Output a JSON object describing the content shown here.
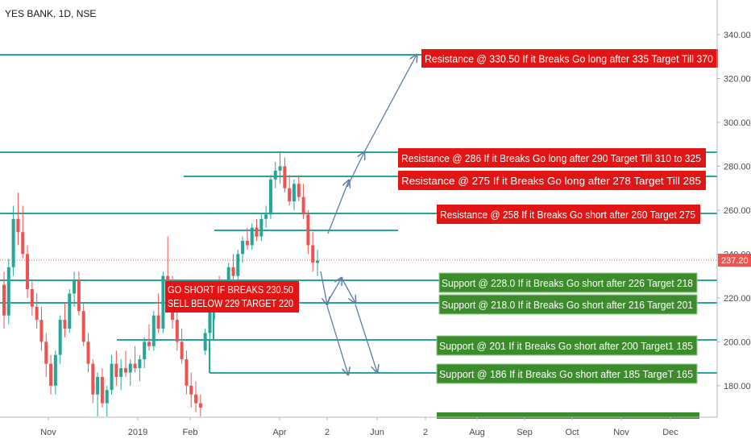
{
  "symbol_title": "YES BANK, 1D, NSE",
  "colors": {
    "up_candle": "#26a69a",
    "down_candle": "#ef5350",
    "level_line": "#26a69a",
    "arrow": "#5b7fa6",
    "resistance_box": "#e31414",
    "support_box": "#3c8c2c",
    "price_tag": "#ef5350",
    "price_line": "#ef5350"
  },
  "chart_data": {
    "type": "candlestick",
    "y_axis": {
      "min": 160,
      "max": 350,
      "ticks": [
        "340.00",
        "320.00",
        "300.00",
        "280.00",
        "260.00",
        "240.00",
        "220.00",
        "200.00",
        "180.00"
      ],
      "tick_values": [
        340,
        320,
        300,
        280,
        260,
        240,
        220,
        200,
        180
      ],
      "position": "right"
    },
    "x_axis": {
      "ticks": [
        "Nov",
        "2019",
        "Feb",
        "Apr",
        "2",
        "Jun",
        "2",
        "Aug",
        "Sep",
        "Oct",
        "Nov",
        "Dec"
      ]
    },
    "last_price": {
      "label": "237.20",
      "value": 237.2
    },
    "candles": [
      {
        "o": 226,
        "h": 232,
        "l": 206,
        "c": 212
      },
      {
        "o": 212,
        "h": 238,
        "l": 208,
        "c": 234
      },
      {
        "o": 234,
        "h": 262,
        "l": 230,
        "c": 256
      },
      {
        "o": 256,
        "h": 268,
        "l": 244,
        "c": 250
      },
      {
        "o": 250,
        "h": 262,
        "l": 238,
        "c": 240
      },
      {
        "o": 240,
        "h": 244,
        "l": 220,
        "c": 224
      },
      {
        "o": 224,
        "h": 228,
        "l": 212,
        "c": 216
      },
      {
        "o": 216,
        "h": 222,
        "l": 206,
        "c": 210
      },
      {
        "o": 210,
        "h": 216,
        "l": 196,
        "c": 200
      },
      {
        "o": 200,
        "h": 204,
        "l": 184,
        "c": 190
      },
      {
        "o": 190,
        "h": 194,
        "l": 176,
        "c": 180
      },
      {
        "o": 180,
        "h": 196,
        "l": 176,
        "c": 194
      },
      {
        "o": 194,
        "h": 212,
        "l": 190,
        "c": 210
      },
      {
        "o": 210,
        "h": 218,
        "l": 202,
        "c": 206
      },
      {
        "o": 206,
        "h": 224,
        "l": 204,
        "c": 222
      },
      {
        "o": 222,
        "h": 232,
        "l": 216,
        "c": 228
      },
      {
        "o": 228,
        "h": 232,
        "l": 212,
        "c": 214
      },
      {
        "o": 214,
        "h": 218,
        "l": 198,
        "c": 200
      },
      {
        "o": 200,
        "h": 204,
        "l": 186,
        "c": 190
      },
      {
        "o": 190,
        "h": 192,
        "l": 172,
        "c": 176
      },
      {
        "o": 176,
        "h": 186,
        "l": 166,
        "c": 184
      },
      {
        "o": 184,
        "h": 188,
        "l": 170,
        "c": 172
      },
      {
        "o": 172,
        "h": 180,
        "l": 166,
        "c": 178
      },
      {
        "o": 178,
        "h": 194,
        "l": 176,
        "c": 190
      },
      {
        "o": 190,
        "h": 196,
        "l": 180,
        "c": 184
      },
      {
        "o": 184,
        "h": 192,
        "l": 178,
        "c": 188
      },
      {
        "o": 188,
        "h": 196,
        "l": 184,
        "c": 186
      },
      {
        "o": 186,
        "h": 192,
        "l": 180,
        "c": 190
      },
      {
        "o": 190,
        "h": 198,
        "l": 186,
        "c": 188
      },
      {
        "o": 188,
        "h": 194,
        "l": 182,
        "c": 192
      },
      {
        "o": 192,
        "h": 202,
        "l": 188,
        "c": 200
      },
      {
        "o": 200,
        "h": 208,
        "l": 196,
        "c": 198
      },
      {
        "o": 198,
        "h": 214,
        "l": 196,
        "c": 212
      },
      {
        "o": 212,
        "h": 222,
        "l": 204,
        "c": 206
      },
      {
        "o": 206,
        "h": 232,
        "l": 204,
        "c": 230
      },
      {
        "o": 230,
        "h": 248,
        "l": 222,
        "c": 226
      },
      {
        "o": 226,
        "h": 230,
        "l": 206,
        "c": 210
      },
      {
        "o": 210,
        "h": 214,
        "l": 196,
        "c": 200
      },
      {
        "o": 200,
        "h": 206,
        "l": 190,
        "c": 192
      },
      {
        "o": 192,
        "h": 196,
        "l": 176,
        "c": 180
      },
      {
        "o": 180,
        "h": 186,
        "l": 170,
        "c": 176
      },
      {
        "o": 176,
        "h": 182,
        "l": 168,
        "c": 172
      },
      {
        "o": 172,
        "h": 176,
        "l": 166,
        "c": 170
      },
      {
        "o": 196,
        "h": 206,
        "l": 194,
        "c": 204
      },
      {
        "o": 204,
        "h": 216,
        "l": 200,
        "c": 214
      },
      {
        "o": 214,
        "h": 226,
        "l": 210,
        "c": 224
      },
      {
        "o": 224,
        "h": 230,
        "l": 216,
        "c": 220
      },
      {
        "o": 220,
        "h": 228,
        "l": 218,
        "c": 226
      },
      {
        "o": 226,
        "h": 236,
        "l": 224,
        "c": 234
      },
      {
        "o": 234,
        "h": 240,
        "l": 228,
        "c": 230
      },
      {
        "o": 230,
        "h": 242,
        "l": 228,
        "c": 240
      },
      {
        "o": 240,
        "h": 248,
        "l": 236,
        "c": 246
      },
      {
        "o": 246,
        "h": 252,
        "l": 242,
        "c": 244
      },
      {
        "o": 244,
        "h": 254,
        "l": 242,
        "c": 252
      },
      {
        "o": 252,
        "h": 256,
        "l": 246,
        "c": 248
      },
      {
        "o": 248,
        "h": 258,
        "l": 246,
        "c": 256
      },
      {
        "o": 256,
        "h": 262,
        "l": 252,
        "c": 258
      },
      {
        "o": 258,
        "h": 276,
        "l": 256,
        "c": 274
      },
      {
        "o": 274,
        "h": 282,
        "l": 270,
        "c": 278
      },
      {
        "o": 278,
        "h": 286,
        "l": 272,
        "c": 280
      },
      {
        "o": 280,
        "h": 284,
        "l": 268,
        "c": 270
      },
      {
        "o": 270,
        "h": 276,
        "l": 262,
        "c": 264
      },
      {
        "o": 264,
        "h": 274,
        "l": 260,
        "c": 272
      },
      {
        "o": 272,
        "h": 276,
        "l": 264,
        "c": 266
      },
      {
        "o": 266,
        "h": 272,
        "l": 256,
        "c": 258
      },
      {
        "o": 258,
        "h": 260,
        "l": 240,
        "c": 244
      },
      {
        "o": 244,
        "h": 250,
        "l": 232,
        "c": 236
      },
      {
        "o": 236,
        "h": 242,
        "l": 230,
        "c": 237
      }
    ]
  },
  "annotations": {
    "resistances": [
      {
        "text": "Resistance @ 330.50  If it Breaks Go long after 335 Target Till 370"
      },
      {
        "text": "Resistance @ 286  If it Breaks Go long after 290 Target Till 310 to  325"
      },
      {
        "text": "Resistance @ 275  If it Breaks Go long after 278 Target Till 285"
      },
      {
        "text": "Resistance @ 258 If it Breaks Go short after 260 Target 275"
      }
    ],
    "supports": [
      {
        "text": "Support @ 228.0 If it Breaks Go short after 226 Target 218"
      },
      {
        "text": "Support @ 218.0 If it Breaks Go short after 216 Target 201"
      },
      {
        "text": "Support @ 201  If it Breaks Go short after 200  Target1 185"
      },
      {
        "text": "Support @ 186  If it Breaks Go short after 185  TargeT 165"
      }
    ],
    "short_note": [
      "GO SHORT IF BREAKS 230.50",
      "SELL BELOW 229 TARGET 220"
    ]
  }
}
